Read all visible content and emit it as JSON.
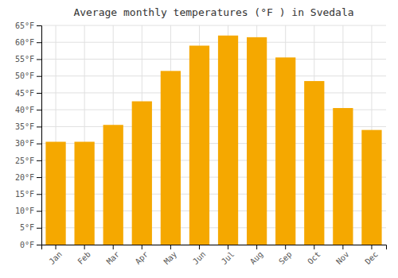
{
  "chart_data": {
    "type": "bar",
    "title": "Average monthly temperatures (°F ) in Svedala",
    "categories": [
      "Jan",
      "Feb",
      "Mar",
      "Apr",
      "May",
      "Jun",
      "Jul",
      "Aug",
      "Sep",
      "Oct",
      "Nov",
      "Dec"
    ],
    "values": [
      30.5,
      30.5,
      35.5,
      42.5,
      51.5,
      59.0,
      62.0,
      61.5,
      55.5,
      48.5,
      40.5,
      34.0
    ],
    "color": "#F5A800",
    "ylim": [
      0,
      65
    ],
    "yticks": [
      {
        "value": 0,
        "label": "0°F"
      },
      {
        "value": 5,
        "label": "5°F"
      },
      {
        "value": 10,
        "label": "10°F"
      },
      {
        "value": 15,
        "label": "15°F"
      },
      {
        "value": 20,
        "label": "20°F"
      },
      {
        "value": 25,
        "label": "25°F"
      },
      {
        "value": 30,
        "label": "30°F"
      },
      {
        "value": 35,
        "label": "35°F"
      },
      {
        "value": 40,
        "label": "40°F"
      },
      {
        "value": 45,
        "label": "45°F"
      },
      {
        "value": 50,
        "label": "50°F"
      },
      {
        "value": 55,
        "label": "55°F"
      },
      {
        "value": 60,
        "label": "60°F"
      },
      {
        "value": 65,
        "label": "65°F"
      }
    ],
    "grid": true
  }
}
